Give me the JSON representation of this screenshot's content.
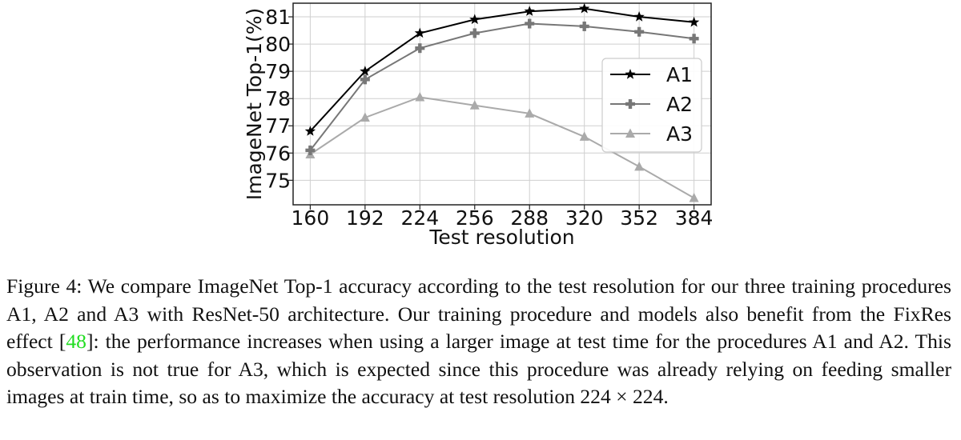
{
  "chart_data": {
    "type": "line",
    "xlabel": "Test resolution",
    "ylabel": "ImageNet Top-1(%)",
    "x": [
      160,
      192,
      224,
      256,
      288,
      320,
      352,
      384
    ],
    "xlim": [
      150,
      394
    ],
    "ylim": [
      74.1,
      81.5
    ],
    "yticks": [
      75,
      76,
      77,
      78,
      79,
      80,
      81
    ],
    "grid": true,
    "legend_position": "right",
    "series": [
      {
        "name": "A1",
        "color": "#000000",
        "marker": "star",
        "values": [
          76.8,
          79.0,
          80.4,
          80.9,
          81.2,
          81.3,
          81.0,
          80.8
        ]
      },
      {
        "name": "A2",
        "color": "#777777",
        "marker": "plus",
        "values": [
          76.1,
          78.7,
          79.85,
          80.4,
          80.75,
          80.65,
          80.45,
          80.2
        ]
      },
      {
        "name": "A3",
        "color": "#aaaaaa",
        "marker": "triangle",
        "values": [
          75.95,
          77.3,
          78.05,
          77.75,
          77.45,
          76.6,
          75.5,
          74.35
        ]
      }
    ]
  },
  "caption": {
    "label": "Figure 4:",
    "part1": " We compare ImageNet Top-1 accuracy according to the test resolution for our three training procedures A1, A2 and A3 with ResNet-50 architecture. Our training procedure and models also benefit from the FixRes effect [",
    "cite": "48",
    "part2": "]: the performance increases when using a larger image at test time for the procedures A1 and A2. This observation is not true for A3, which is expected since this procedure was already relying on feeding smaller images at train time, so as to maximize the accuracy at test resolution 224 × 224."
  }
}
